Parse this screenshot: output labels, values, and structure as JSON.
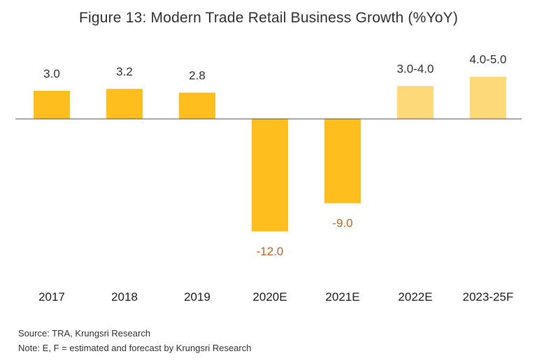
{
  "title": "Figure 13: Modern Trade Retail Business Growth (%YoY)",
  "source_note": "Source: TRA, Krungsri Research",
  "estimate_note": "Note: E, F = estimated and forecast by Krungsri Research",
  "colors": {
    "actual": "#FDBE1E",
    "forecast": "#FED97A",
    "positive_label": "#333333",
    "negative_label": "#C0662A",
    "axis": "#555555"
  },
  "chart_data": {
    "type": "bar",
    "title": "Figure 13: Modern Trade Retail Business Growth (%YoY)",
    "categories": [
      "2017",
      "2018",
      "2019",
      "2020E",
      "2021E",
      "2022E",
      "2023-25F"
    ],
    "values": [
      3.0,
      3.2,
      2.8,
      -12.0,
      -9.0,
      3.5,
      4.5
    ],
    "value_labels": [
      "3.0",
      "3.2",
      "2.8",
      "-12.0",
      "-9.0",
      "3.0-4.0",
      "4.0-5.0"
    ],
    "forecast": [
      false,
      false,
      false,
      false,
      false,
      true,
      true
    ],
    "ylim": [
      -12.0,
      4.5
    ],
    "grid": false,
    "xlabel": "",
    "ylabel": ""
  }
}
